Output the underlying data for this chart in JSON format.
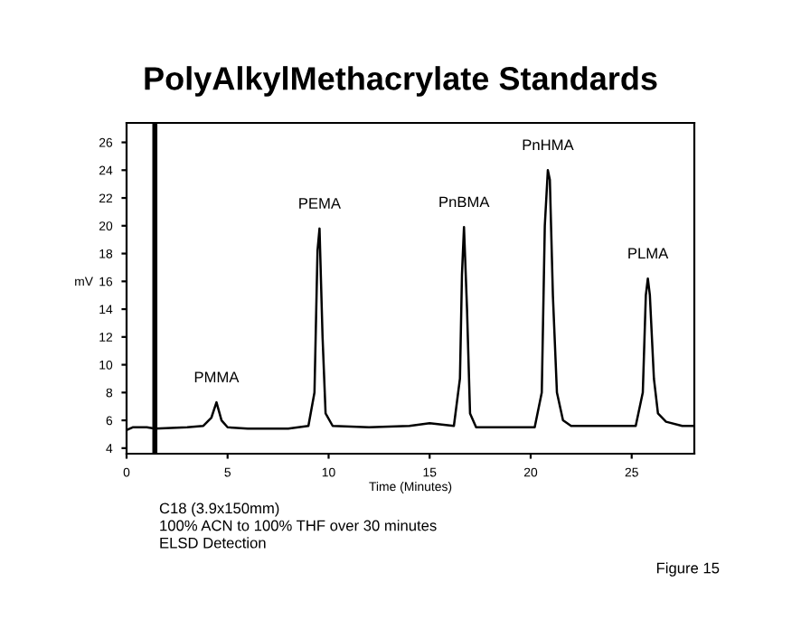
{
  "chart_data": {
    "type": "line",
    "title": "PolyAlkylMethacrylate Standards",
    "xlabel": "Time (Minutes)",
    "ylabel": "mV",
    "x": [
      0,
      0.3,
      1,
      1.4,
      3,
      3.8,
      4.2,
      4.45,
      4.7,
      5,
      6,
      8,
      9.0,
      9.3,
      9.45,
      9.55,
      9.7,
      9.85,
      10.2,
      12,
      14,
      15,
      15.6,
      16.2,
      16.5,
      16.6,
      16.7,
      16.85,
      17.0,
      17.3,
      20.2,
      20.55,
      20.7,
      20.85,
      20.95,
      21.1,
      21.3,
      21.6,
      22,
      25.2,
      25.55,
      25.7,
      25.8,
      25.9,
      26.1,
      26.3,
      26.7,
      27.5,
      28.1
    ],
    "series": [
      {
        "color": "#000000",
        "values": [
          5.3,
          5.5,
          5.5,
          5.4,
          5.5,
          5.6,
          6.2,
          7.3,
          6.0,
          5.5,
          5.4,
          5.4,
          5.6,
          8,
          18.2,
          19.8,
          12,
          6.5,
          5.6,
          5.5,
          5.6,
          5.8,
          5.7,
          5.6,
          9,
          16.5,
          19.9,
          14,
          6.5,
          5.5,
          5.5,
          8,
          20,
          24.0,
          23.3,
          15,
          8,
          6,
          5.6,
          5.6,
          8,
          15,
          16.2,
          15,
          9,
          6.5,
          5.9,
          5.6,
          5.6
        ]
      }
    ],
    "xlim": [
      0,
      28.1
    ],
    "ylim": [
      3.6,
      27.4
    ],
    "xticks": [
      0,
      5,
      10,
      15,
      20,
      25
    ],
    "yticks": [
      4,
      6,
      8,
      10,
      12,
      14,
      16,
      18,
      20,
      22,
      24,
      26
    ],
    "ref_lines": [
      {
        "axis": "x",
        "value": 1.4,
        "color": "#000000"
      }
    ],
    "annotations": [
      {
        "text": "PMMA",
        "x": 4.45,
        "y": 7.3
      },
      {
        "text": "PEMA",
        "x": 9.55,
        "y": 19.8
      },
      {
        "text": "PnBMA",
        "x": 16.7,
        "y": 19.9
      },
      {
        "text": "PnHMA",
        "x": 20.85,
        "y": 24.0
      },
      {
        "text": "PLMA",
        "x": 25.8,
        "y": 16.2
      },
      "C18 (3.9x150mm)\n100% ACN to 100% THF over 30 minutes\nELSD Detection",
      "Figure 15"
    ],
    "grid": false,
    "legend": false
  }
}
